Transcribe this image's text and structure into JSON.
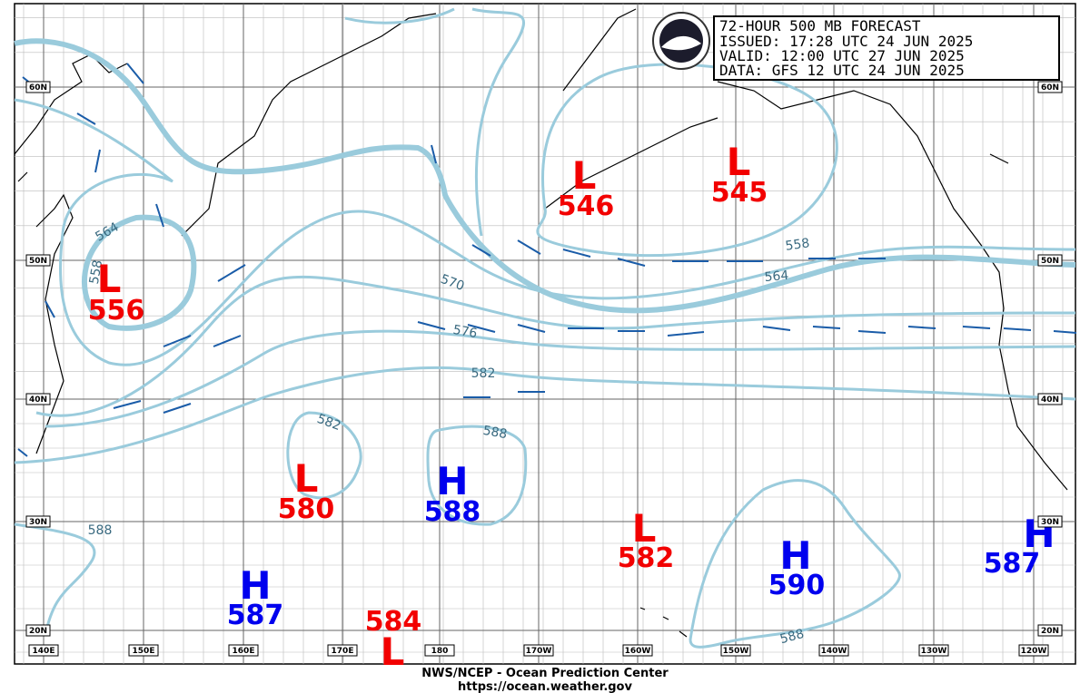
{
  "header": {
    "lines": [
      "72-HOUR 500 MB FORECAST",
      "ISSUED: 17:28 UTC 24 JUN 2025",
      "VALID:  12:00 UTC 27 JUN 2025",
      "DATA:  GFS 12 UTC 24 JUN 2025"
    ]
  },
  "centers": [
    {
      "type": "L",
      "value": "556"
    },
    {
      "type": "L",
      "value": "546"
    },
    {
      "type": "L",
      "value": "545"
    },
    {
      "type": "L",
      "value": "580"
    },
    {
      "type": "H",
      "value": "588"
    },
    {
      "type": "L",
      "value": "582"
    },
    {
      "type": "H",
      "value": "590"
    },
    {
      "type": "H",
      "value": "587"
    },
    {
      "type": "H",
      "value": "587"
    },
    {
      "type": "L",
      "value": "584"
    }
  ],
  "contour_labels": [
    "564",
    "558",
    "570",
    "576",
    "582",
    "582",
    "588",
    "588",
    "588",
    "558",
    "564"
  ],
  "lat_labels": [
    "60N",
    "50N",
    "40N",
    "30N",
    "20N"
  ],
  "lon_labels": [
    "140E",
    "150E",
    "160E",
    "170E",
    "180",
    "170W",
    "160W",
    "150W",
    "140W",
    "130W",
    "120W"
  ],
  "footer": [
    "NWS/NCEP - Ocean Prediction Center",
    "https://ocean.weather.gov"
  ]
}
